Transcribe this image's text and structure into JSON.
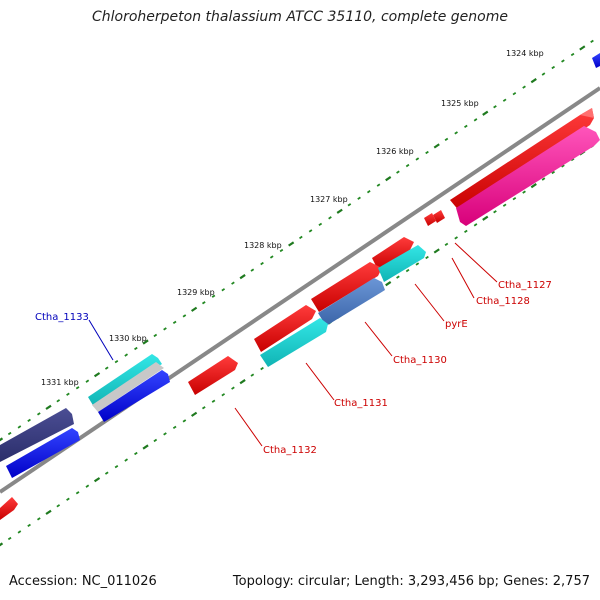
{
  "title": "Chloroherpeton thalassium ATCC 35110, complete genome",
  "footer": {
    "accession": "Accession: NC_011026",
    "topology": "Topology: circular; Length: 3,293,456 bp; Genes: 2,757"
  },
  "colors": {
    "backbone": "#888888",
    "tick_minor": "#228822",
    "tick_major": "#1f7a1f",
    "label_red": "#cc0000",
    "label_blue": "#0000bb"
  },
  "scale_labels": [
    {
      "text": "1324 kbp"
    },
    {
      "text": "1325 kbp"
    },
    {
      "text": "1326 kbp"
    },
    {
      "text": "1327 kbp"
    },
    {
      "text": "1328 kbp"
    },
    {
      "text": "1329 kbp"
    },
    {
      "text": "1330 kbp"
    },
    {
      "text": "1331 kbp"
    }
  ],
  "gene_labels": [
    {
      "text": "Ctha_1127",
      "color": "red"
    },
    {
      "text": "Ctha_1128",
      "color": "red"
    },
    {
      "text": "pyrE",
      "color": "red"
    },
    {
      "text": "Ctha_1130",
      "color": "red"
    },
    {
      "text": "Ctha_1131",
      "color": "red"
    },
    {
      "text": "Ctha_1132",
      "color": "red"
    },
    {
      "text": "Ctha_1133",
      "color": "blue"
    }
  ]
}
